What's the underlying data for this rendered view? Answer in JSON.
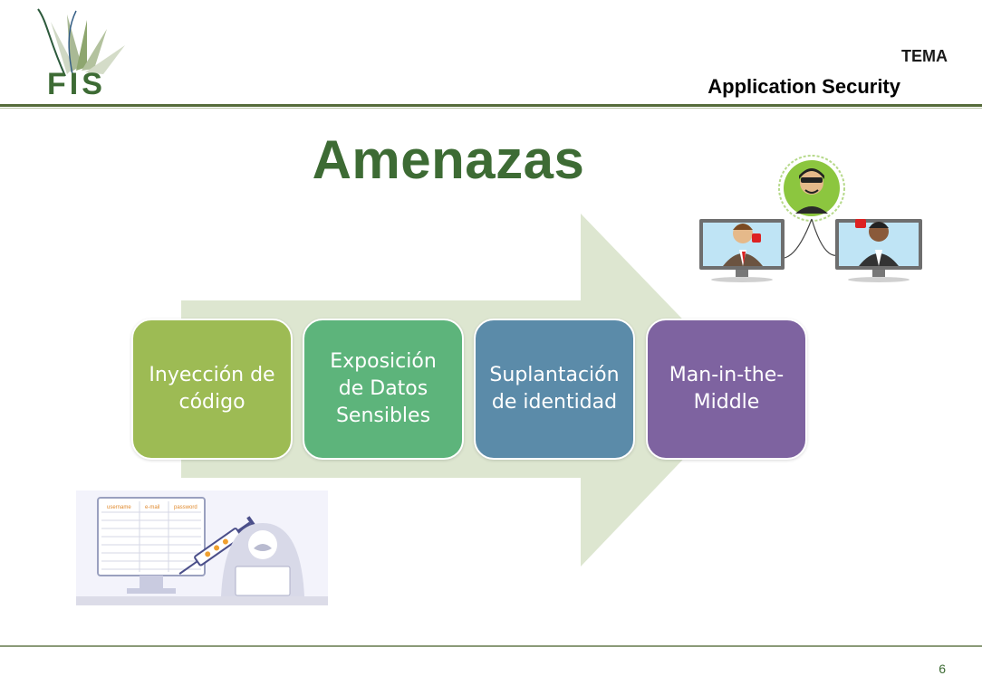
{
  "header": {
    "logo_text": "FIS",
    "tema_label": "TEMA",
    "subject": "Application Security"
  },
  "slide": {
    "title": "Amenazas",
    "steps": [
      {
        "label": "Inyección de\ncódigo",
        "color": "#9dbb54"
      },
      {
        "label": "Exposición\nde Datos\nSensibles",
        "color": "#5db47b"
      },
      {
        "label": "Suplantación\nde identidad",
        "color": "#5b8ba9"
      },
      {
        "label": "Man-in-the-\nMiddle",
        "color": "#7e63a0"
      }
    ],
    "arrow_color": "#dde6d0",
    "sqli_table": {
      "headers": [
        "username",
        "e-mail",
        "password"
      ],
      "cell": "*****"
    }
  },
  "footer": {
    "page_number": "6"
  },
  "colors": {
    "accent": "#3d6b34",
    "rule": "#556b3a"
  }
}
